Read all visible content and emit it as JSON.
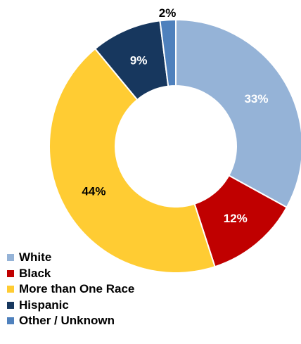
{
  "chart_data": {
    "type": "pie",
    "variant": "donut",
    "title": "",
    "categories": [
      "White",
      "Black",
      "More than One Race",
      "Hispanic",
      "Other / Unknown"
    ],
    "values": [
      33,
      12,
      44,
      9,
      2
    ],
    "labels": [
      "33%",
      "12%",
      "44%",
      "9%",
      "2%"
    ],
    "unit": "%",
    "colors": [
      "#95B3D7",
      "#C00000",
      "#FFCC33",
      "#17375E",
      "#4F81BD"
    ],
    "label_colors": [
      "#ffffff",
      "#ffffff",
      "#000000",
      "#ffffff",
      "#000000"
    ],
    "legend": {
      "position": "bottom-left"
    }
  }
}
